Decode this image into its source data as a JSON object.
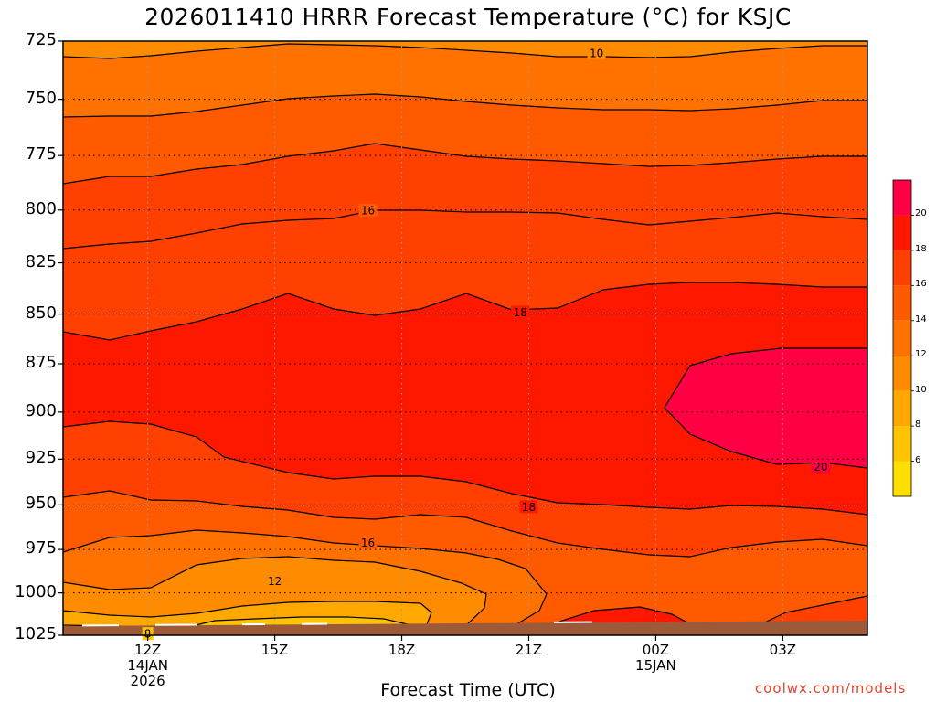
{
  "title": "2026011410 HRRR Forecast Temperature (°C) for KSJC",
  "xaxis_title": "Forecast Time (UTC)",
  "credit": "coolwx.com/models",
  "chart_data": {
    "type": "heatmap",
    "title": "2026011410 HRRR Forecast Temperature (°C) for KSJC",
    "xlabel": "Forecast Time (UTC)",
    "ylabel": "",
    "x_unit": "hours from 10Z 14JAN2026",
    "x_range": [
      0,
      19
    ],
    "y_range": [
      725,
      1025
    ],
    "y_scale": "log-pressure, inverted",
    "grid": true,
    "y_ticks": [
      "725",
      "750",
      "775",
      "800",
      "825",
      "850",
      "875",
      "900",
      "925",
      "950",
      "975",
      "1000",
      "1025"
    ],
    "y_tick_values": [
      725,
      750,
      775,
      800,
      825,
      850,
      875,
      900,
      925,
      950,
      975,
      1000,
      1025
    ],
    "x_ticks": [
      {
        "x": 2,
        "label": "12Z",
        "sub": "14JAN",
        "sub2": "2026"
      },
      {
        "x": 5,
        "label": "15Z",
        "sub": "",
        "sub2": ""
      },
      {
        "x": 8,
        "label": "18Z",
        "sub": "",
        "sub2": ""
      },
      {
        "x": 11,
        "label": "21Z",
        "sub": "",
        "sub2": ""
      },
      {
        "x": 14,
        "label": "00Z",
        "sub": "15JAN",
        "sub2": ""
      },
      {
        "x": 17,
        "label": "03Z",
        "sub": "",
        "sub2": ""
      }
    ],
    "contour_interval": 2,
    "contour_labels": [
      {
        "text": "10",
        "x": 12.6,
        "p": 730
      },
      {
        "text": "16",
        "x": 7.2,
        "p": 800
      },
      {
        "text": "18",
        "x": 10.8,
        "p": 849
      },
      {
        "text": "20",
        "x": 17.9,
        "p": 929
      },
      {
        "text": "18",
        "x": 11.0,
        "p": 951
      },
      {
        "text": "16",
        "x": 7.2,
        "p": 971
      },
      {
        "text": "12",
        "x": 5.0,
        "p": 993
      },
      {
        "text": "8",
        "x": 2.0,
        "p": 1024
      }
    ],
    "colorbar": {
      "levels": [
        4,
        6,
        8,
        10,
        12,
        14,
        16,
        18,
        20,
        22
      ],
      "colors": [
        "#ffde00",
        "#ffc400",
        "#ffa800",
        "#ff8c00",
        "#ff7200",
        "#ff5a00",
        "#ff4000",
        "#ff1800",
        "#ff0044"
      ],
      "labels": [
        "6",
        "8",
        "10",
        "12",
        "14",
        "16",
        "18",
        "20"
      ]
    },
    "surface_color": "#9c5a3a"
  }
}
